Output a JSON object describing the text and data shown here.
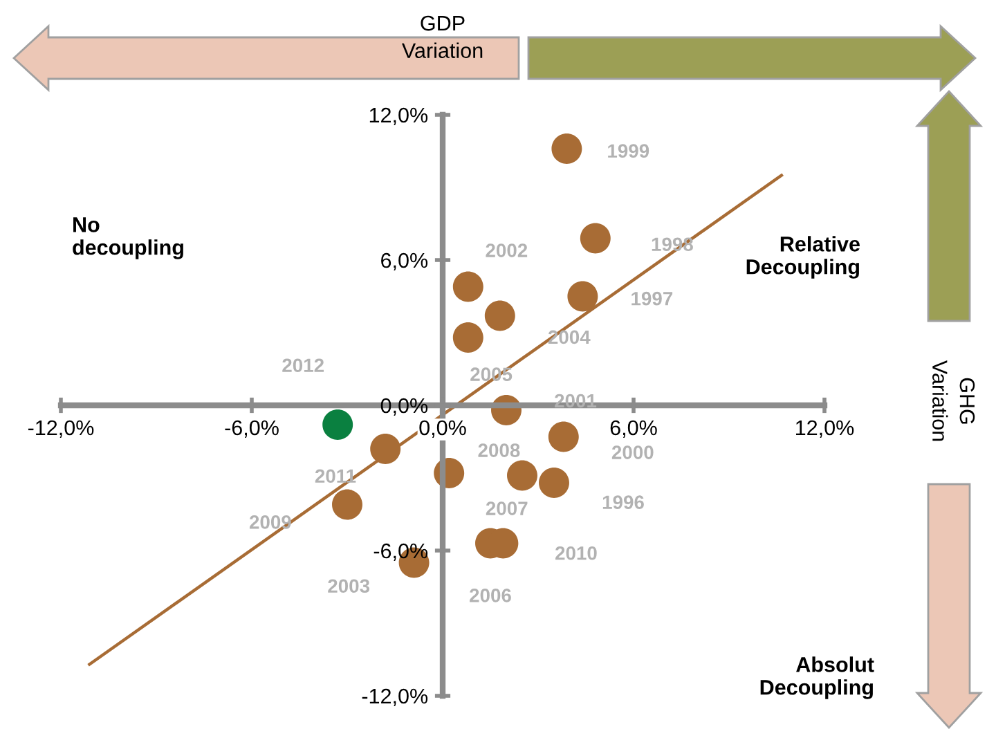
{
  "chart_data": {
    "type": "scatter",
    "xlabel": "GDP\nVariation",
    "ylabel": "GHG\nVariation",
    "xlim": [
      -12,
      12
    ],
    "ylim": [
      -12,
      12
    ],
    "xticks": [
      {
        "value": -12,
        "label": "-12,0%"
      },
      {
        "value": -6,
        "label": "-6,0%"
      },
      {
        "value": 0,
        "label": "0,0%"
      },
      {
        "value": 6,
        "label": "6,0%"
      },
      {
        "value": 12,
        "label": "12,0%"
      }
    ],
    "yticks": [
      {
        "value": -12,
        "label": "-12,0%"
      },
      {
        "value": -6,
        "label": "-6,0%"
      },
      {
        "value": 0,
        "label": "0,0%"
      },
      {
        "value": 6,
        "label": "6,0%"
      },
      {
        "value": 12,
        "label": "12,0%"
      }
    ],
    "grid": false,
    "annotations": [
      "No\ndecoupling",
      "Relative\nDecoupling",
      "Absolut\nDecoupling",
      {
        "text": "1996",
        "x": 3.5,
        "y": -3.2
      },
      {
        "text": "1997",
        "x": 4.4,
        "y": 4.5
      },
      {
        "text": "1998",
        "x": 4.8,
        "y": 6.9
      },
      {
        "text": "1999",
        "x": 3.9,
        "y": 10.6
      },
      {
        "text": "2000",
        "x": 3.8,
        "y": -1.3
      },
      {
        "text": "2001",
        "x": 2.0,
        "y": -0.2
      },
      {
        "text": "2002",
        "x": 0.8,
        "y": 4.9
      },
      {
        "text": "2003",
        "x": -0.9,
        "y": -6.5
      },
      {
        "text": "2004",
        "x": 1.8,
        "y": 3.7
      },
      {
        "text": "2005",
        "x": 0.8,
        "y": 2.8
      },
      {
        "text": "2006",
        "x": 1.5,
        "y": -5.7
      },
      {
        "text": "2007",
        "x": 2.5,
        "y": -2.9
      },
      {
        "text": "2008",
        "x": 0.2,
        "y": -2.8
      },
      {
        "text": "2009",
        "x": -3.0,
        "y": -4.1
      },
      {
        "text": "2010",
        "x": 1.9,
        "y": -5.7
      },
      {
        "text": "2011",
        "x": -1.8,
        "y": -1.8
      },
      {
        "text": "2012",
        "x": -3.3,
        "y": -0.8
      }
    ],
    "series": [
      {
        "type": "line",
        "color": "#a86c35",
        "x": [
          -11.1,
          10.65
        ],
        "values": [
          -10.7,
          9.5
        ]
      },
      {
        "color": "#a86c35",
        "marker": "circle",
        "x": [
          3.5,
          4.4,
          4.8,
          3.9,
          3.8,
          2.0,
          0.8,
          -0.9,
          1.8,
          0.8,
          1.5,
          2.5,
          0.2,
          -3.0,
          1.9,
          -1.8
        ],
        "values": [
          -3.2,
          4.5,
          6.9,
          10.6,
          -1.3,
          -0.2,
          4.9,
          -6.5,
          3.7,
          2.8,
          -5.7,
          -2.9,
          -2.8,
          -4.1,
          -5.7,
          -1.8
        ]
      },
      {
        "color": "#0a8040",
        "marker": "circle",
        "x": [
          -3.3
        ],
        "values": [
          -0.8
        ]
      }
    ]
  }
}
